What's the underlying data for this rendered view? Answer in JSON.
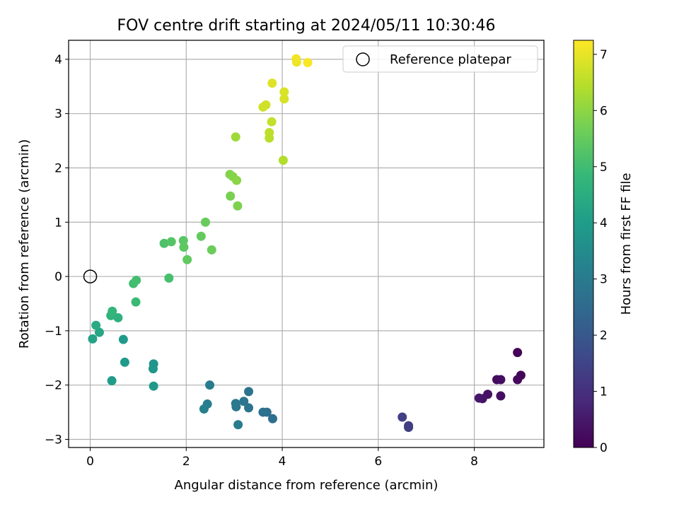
{
  "chart_data": {
    "type": "scatter",
    "title": "FOV centre drift starting at 2024/05/11 10:30:46",
    "xlabel": "Angular distance from reference (arcmin)",
    "ylabel": "Rotation from reference (arcmin)",
    "xlim": [
      -0.45,
      9.45
    ],
    "ylim": [
      -3.15,
      4.35
    ],
    "xticks": [
      0,
      2,
      4,
      6,
      8
    ],
    "yticks": [
      -3,
      -2,
      -1,
      0,
      1,
      2,
      3,
      4
    ],
    "grid": true,
    "colormap": "viridis",
    "colorbar": {
      "label": "Hours from first FF file",
      "min": 0,
      "max": 7.25,
      "ticks": [
        0,
        1,
        2,
        3,
        4,
        5,
        6,
        7
      ]
    },
    "legend": {
      "position": "top-right",
      "entries": [
        "Reference platepar"
      ]
    },
    "reference": {
      "x": 0,
      "y": 0
    },
    "points": [
      [
        8.9,
        -1.4,
        0.05
      ],
      [
        8.97,
        -1.82,
        0.1
      ],
      [
        8.9,
        -1.9,
        0.15
      ],
      [
        8.47,
        -1.9,
        0.2
      ],
      [
        8.55,
        -1.9,
        0.25
      ],
      [
        8.55,
        -2.2,
        0.3
      ],
      [
        8.28,
        -2.17,
        0.35
      ],
      [
        8.17,
        -2.25,
        0.4
      ],
      [
        8.1,
        -2.24,
        0.45
      ],
      [
        6.63,
        -2.75,
        1.3
      ],
      [
        6.63,
        -2.78,
        1.35
      ],
      [
        6.5,
        -2.59,
        1.4
      ],
      [
        3.8,
        -2.62,
        2.6
      ],
      [
        3.68,
        -2.5,
        2.65
      ],
      [
        3.6,
        -2.5,
        2.7
      ],
      [
        3.3,
        -2.12,
        2.75
      ],
      [
        3.3,
        -2.42,
        2.8
      ],
      [
        3.2,
        -2.3,
        2.85
      ],
      [
        3.04,
        -2.4,
        2.9
      ],
      [
        3.03,
        -2.34,
        2.95
      ],
      [
        3.08,
        -2.73,
        3.0
      ],
      [
        2.49,
        -2.0,
        3.05
      ],
      [
        2.44,
        -2.35,
        3.1
      ],
      [
        2.37,
        -2.44,
        3.15
      ],
      [
        1.32,
        -1.61,
        3.75
      ],
      [
        1.31,
        -1.7,
        3.8
      ],
      [
        1.32,
        -2.02,
        3.85
      ],
      [
        0.72,
        -1.58,
        3.9
      ],
      [
        0.69,
        -1.16,
        3.95
      ],
      [
        0.45,
        -1.92,
        4.0
      ],
      [
        0.05,
        -1.15,
        4.2
      ],
      [
        0.19,
        -1.03,
        4.3
      ],
      [
        0.12,
        -0.9,
        4.4
      ],
      [
        0.58,
        -0.76,
        4.6
      ],
      [
        0.43,
        -0.72,
        4.7
      ],
      [
        0.46,
        -0.64,
        4.8
      ],
      [
        0.95,
        -0.47,
        4.9
      ],
      [
        0.9,
        -0.13,
        5.0
      ],
      [
        0.96,
        -0.07,
        5.05
      ],
      [
        1.64,
        -0.03,
        5.1
      ],
      [
        1.54,
        0.61,
        5.2
      ],
      [
        1.69,
        0.64,
        5.3
      ],
      [
        1.94,
        0.66,
        5.35
      ],
      [
        1.95,
        0.54,
        5.4
      ],
      [
        2.02,
        0.31,
        5.45
      ],
      [
        2.31,
        0.74,
        5.5
      ],
      [
        2.4,
        1.0,
        5.55
      ],
      [
        2.53,
        0.49,
        5.6
      ],
      [
        2.92,
        1.48,
        5.75
      ],
      [
        3.07,
        1.3,
        5.8
      ],
      [
        2.91,
        1.88,
        5.85
      ],
      [
        2.97,
        1.84,
        5.9
      ],
      [
        3.05,
        1.77,
        5.95
      ],
      [
        3.03,
        2.57,
        6.2
      ],
      [
        4.02,
        2.14,
        6.4
      ],
      [
        3.73,
        2.55,
        6.5
      ],
      [
        3.73,
        2.65,
        6.55
      ],
      [
        3.78,
        2.85,
        6.6
      ],
      [
        3.6,
        3.12,
        6.7
      ],
      [
        3.66,
        3.16,
        6.75
      ],
      [
        4.04,
        3.27,
        6.8
      ],
      [
        4.04,
        3.4,
        6.85
      ],
      [
        3.79,
        3.56,
        6.9
      ],
      [
        4.3,
        3.95,
        7.05
      ],
      [
        4.29,
        4.01,
        7.1
      ],
      [
        4.53,
        3.94,
        7.2
      ]
    ]
  }
}
